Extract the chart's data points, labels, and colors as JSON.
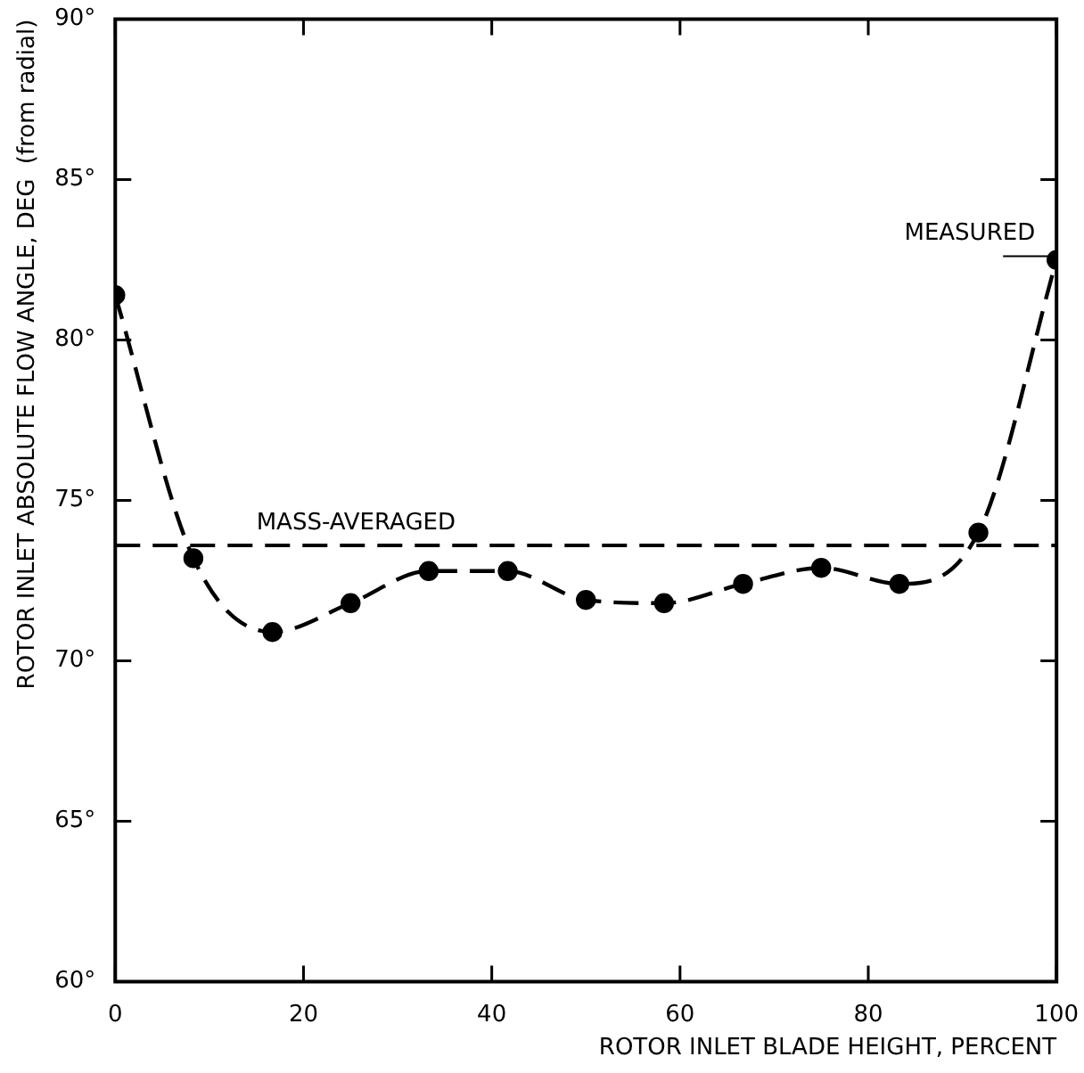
{
  "chart_data": {
    "type": "line",
    "xlabel": "ROTOR INLET BLADE HEIGHT, PERCENT",
    "ylabel": "ROTOR INLET ABSOLUTE FLOW ANGLE, DEG  (from radial)",
    "x": [
      0,
      8.3,
      16.7,
      25,
      33.3,
      41.7,
      50,
      58.3,
      66.7,
      75,
      83.3,
      91.7,
      100
    ],
    "series": [
      {
        "color": "#000000",
        "values": [
          81.4,
          73.2,
          70.9,
          71.8,
          72.8,
          72.8,
          71.9,
          71.8,
          72.4,
          72.9,
          72.4,
          74.0,
          82.5
        ]
      }
    ],
    "xlim": [
      0,
      100
    ],
    "xticks": [
      0,
      20,
      40,
      60,
      80,
      100
    ],
    "ylim": [
      60,
      90
    ],
    "yticks": [
      {
        "value": 60,
        "label": "60°"
      },
      {
        "value": 65,
        "label": "65°"
      },
      {
        "value": 70,
        "label": "70°"
      },
      {
        "value": 75,
        "label": "75°"
      },
      {
        "value": 80,
        "label": "80°"
      },
      {
        "value": 85,
        "label": "85°"
      },
      {
        "value": 90,
        "label": "90°"
      }
    ],
    "ref_lines": [
      {
        "axis": "y",
        "value": 73.6,
        "label": "MASS-AVERAGED",
        "color": "#000000",
        "line_style": "dashed"
      }
    ],
    "annotations": [
      {
        "text": "MEASURED",
        "x": 100,
        "y": 82.5
      }
    ],
    "marker": "circle",
    "line_style": "dashed",
    "grid": false,
    "legend": false
  }
}
